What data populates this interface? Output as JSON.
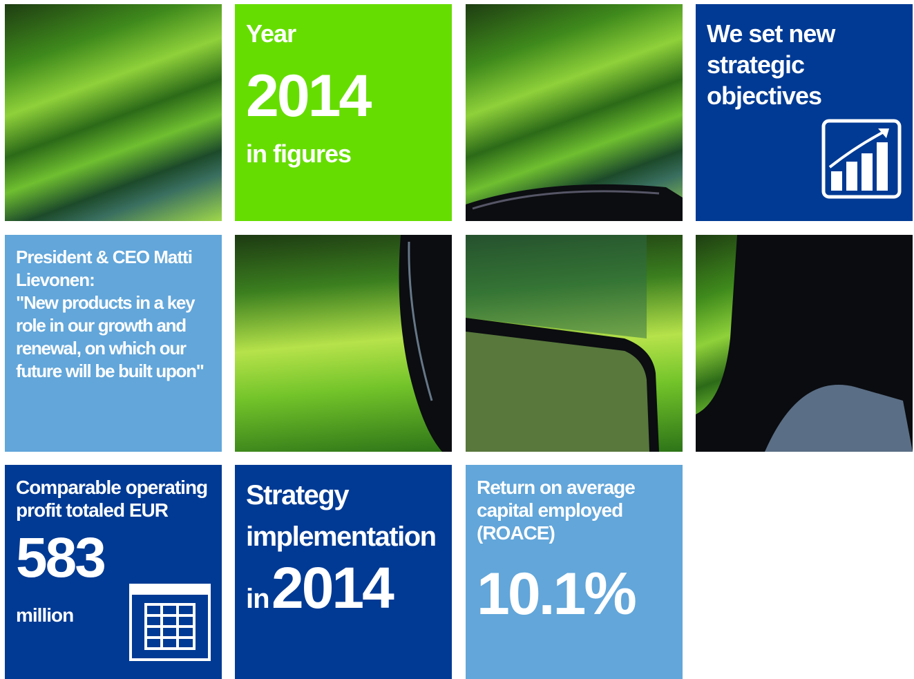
{
  "tiles": {
    "year": {
      "label": "Year",
      "year": "2014",
      "caption": "in figures"
    },
    "strategy": {
      "title": "We set new strategic objectives"
    },
    "ceo": {
      "name": "President & CEO Matti Lievonen:",
      "quote": "\"New products in a key role in our growth and renewal, on which our future will be built upon\""
    },
    "profit": {
      "intro": "Comparable operating profit totaled EUR",
      "figure": "583",
      "unit": "million"
    },
    "implementation": {
      "title": "Strategy implementation",
      "prefix": "in",
      "year": "2014"
    },
    "roace": {
      "intro": "Return on average capital employed (ROACE)",
      "figure": "10.1%"
    }
  }
}
